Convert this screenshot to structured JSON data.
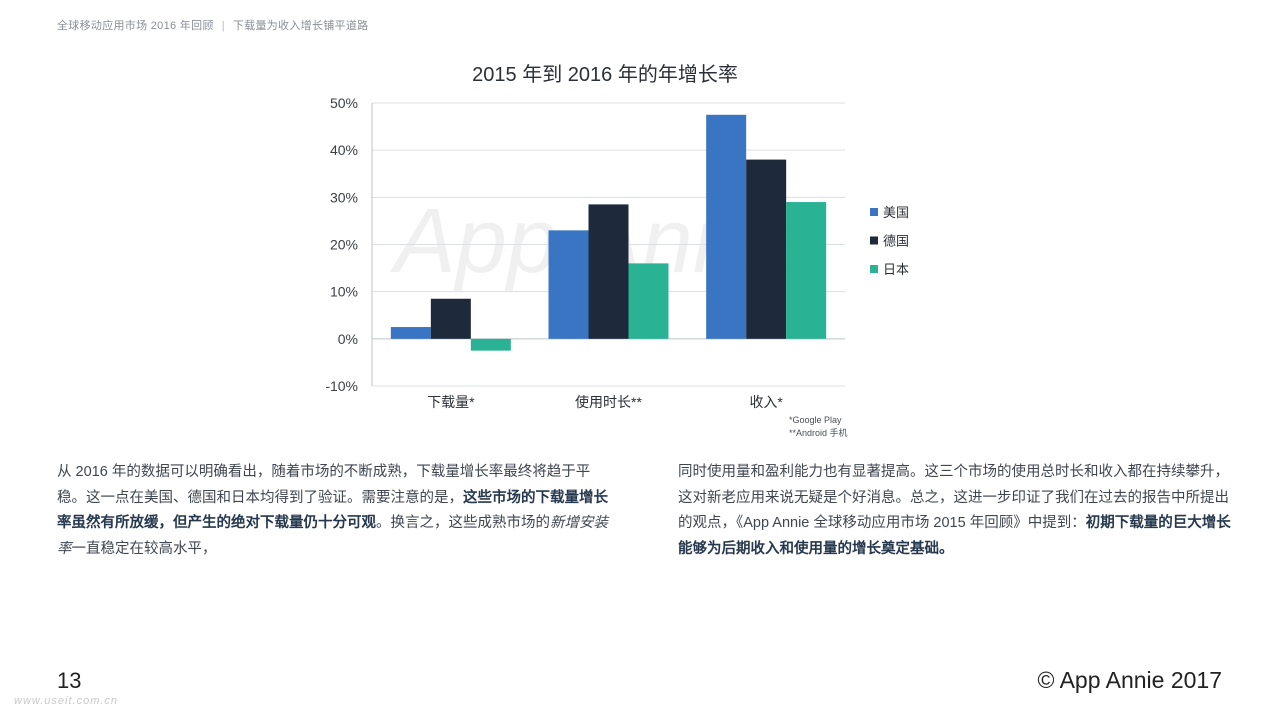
{
  "header": {
    "report": "全球移动应用市场 2016 年回顾",
    "separator": "|",
    "section": "下载量为收入增长铺平道路"
  },
  "chart_data": {
    "type": "bar",
    "title": "2015 年到 2016 年的年增长率",
    "categories": [
      "下载量*",
      "使用时长**",
      "收入*"
    ],
    "series": [
      {
        "name": "美国",
        "color": "#3a75c4",
        "values": [
          2.5,
          23,
          47.5
        ]
      },
      {
        "name": "德国",
        "color": "#1e2a3c",
        "values": [
          8.5,
          28.5,
          38
        ]
      },
      {
        "name": "日本",
        "color": "#29b394",
        "values": [
          -2.5,
          16,
          29
        ]
      }
    ],
    "ylim": [
      -10,
      50
    ],
    "yticks": [
      50,
      40,
      30,
      20,
      10,
      0,
      -10
    ],
    "ytick_labels": [
      "50%",
      "40%",
      "30%",
      "20%",
      "10%",
      "0%",
      "-10%"
    ],
    "grid": true,
    "legend_position": "right",
    "footnotes": [
      "*Google Play",
      "**Android 手机"
    ],
    "watermark": "App Annie"
  },
  "body": {
    "left_p1": "从 2016 年的数据可以明确看出，随着市场的不断成熟，下载量增长率最终将趋于平稳。这一点在美国、德国和日本均得到了验证。需要注意的是，",
    "left_bold": "这些市场的下载量增长率虽然有所放缓，但产生的绝对下载量仍十分可观",
    "left_p2": "。换言之，这些成熟市场的",
    "left_italic": "新增安装率",
    "left_p3": "一直稳定在较高水平，",
    "right_p1": "同时使用量和盈利能力也有显著提高。这三个市场的使用总时长和收入都在持续攀升，这对新老应用来说无疑是个好消息。总之，这进一步印证了我们在过去的报告中所提出的观点，《App Annie 全球移动应用市场 2015 年回顾》中提到：",
    "right_bold": "初期下载量的巨大增长能够为后期收入和使用量的增长奠定基础。"
  },
  "footer": {
    "page_number": "13",
    "copyright": "© App Annie 2017",
    "site_watermark": "www.useit.com.cn"
  }
}
